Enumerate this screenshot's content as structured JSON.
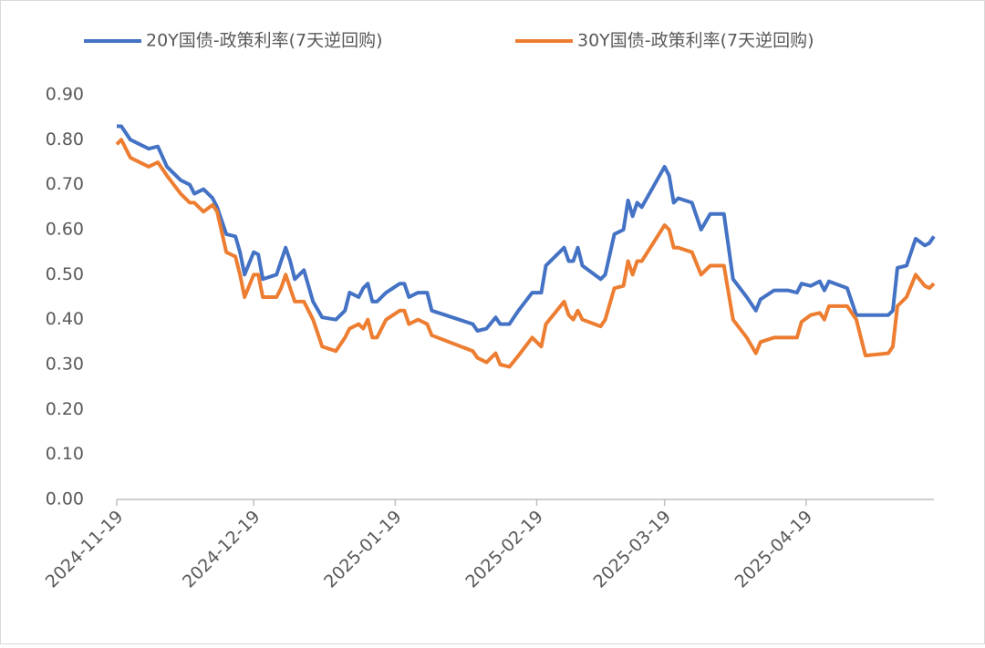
{
  "chart_data": {
    "type": "line",
    "x": [
      "2024-11-19",
      "2024-11-20",
      "2024-11-22",
      "2024-11-26",
      "2024-11-28",
      "2024-11-30",
      "2024-12-03",
      "2024-12-05",
      "2024-12-06",
      "2024-12-08",
      "2024-12-10",
      "2024-12-11",
      "2024-12-13",
      "2024-12-15",
      "2024-12-16",
      "2024-12-17",
      "2024-12-19",
      "2024-12-20",
      "2024-12-21",
      "2024-12-24",
      "2024-12-25",
      "2024-12-26",
      "2024-12-27",
      "2024-12-28",
      "2024-12-30",
      "2025-01-01",
      "2025-01-03",
      "2025-01-06",
      "2025-01-08",
      "2025-01-09",
      "2025-01-11",
      "2025-01-12",
      "2025-01-13",
      "2025-01-14",
      "2025-01-15",
      "2025-01-17",
      "2025-01-20",
      "2025-01-21",
      "2025-01-22",
      "2025-01-24",
      "2025-01-26",
      "2025-01-27",
      "2025-02-05",
      "2025-02-06",
      "2025-02-08",
      "2025-02-10",
      "2025-02-11",
      "2025-02-13",
      "2025-02-15",
      "2025-02-18",
      "2025-02-20",
      "2025-02-21",
      "2025-02-25",
      "2025-02-26",
      "2025-02-27",
      "2025-02-28",
      "2025-03-01",
      "2025-03-05",
      "2025-03-06",
      "2025-03-08",
      "2025-03-10",
      "2025-03-11",
      "2025-03-12",
      "2025-03-13",
      "2025-03-14",
      "2025-03-19",
      "2025-03-20",
      "2025-03-21",
      "2025-03-22",
      "2025-03-25",
      "2025-03-27",
      "2025-03-29",
      "2025-04-01",
      "2025-04-03",
      "2025-04-06",
      "2025-04-08",
      "2025-04-09",
      "2025-04-12",
      "2025-04-15",
      "2025-04-17",
      "2025-04-18",
      "2025-04-20",
      "2025-04-22",
      "2025-04-23",
      "2025-04-24",
      "2025-04-28",
      "2025-04-30",
      "2025-05-02",
      "2025-05-07",
      "2025-05-08",
      "2025-05-09",
      "2025-05-11",
      "2025-05-13",
      "2025-05-15",
      "2025-05-16",
      "2025-05-17"
    ],
    "series": [
      {
        "name": "20Y国债-政策利率(7天逆回购)",
        "color": "#4472c4",
        "values": [
          0.83,
          0.83,
          0.8,
          0.78,
          0.785,
          0.74,
          0.71,
          0.7,
          0.68,
          0.69,
          0.67,
          0.65,
          0.59,
          0.585,
          0.55,
          0.5,
          0.55,
          0.545,
          0.49,
          0.5,
          0.53,
          0.56,
          0.53,
          0.49,
          0.51,
          0.44,
          0.405,
          0.4,
          0.42,
          0.46,
          0.45,
          0.47,
          0.48,
          0.44,
          0.44,
          0.46,
          0.48,
          0.48,
          0.45,
          0.46,
          0.46,
          0.42,
          0.39,
          0.375,
          0.38,
          0.405,
          0.39,
          0.39,
          0.42,
          0.46,
          0.46,
          0.52,
          0.56,
          0.53,
          0.53,
          0.56,
          0.52,
          0.49,
          0.5,
          0.59,
          0.6,
          0.665,
          0.63,
          0.66,
          0.65,
          0.74,
          0.72,
          0.66,
          0.67,
          0.66,
          0.6,
          0.635,
          0.635,
          0.49,
          0.45,
          0.42,
          0.445,
          0.465,
          0.465,
          0.46,
          0.48,
          0.475,
          0.485,
          0.465,
          0.485,
          0.47,
          0.41,
          0.41,
          0.41,
          0.42,
          0.515,
          0.52,
          0.58,
          0.565,
          0.57,
          0.585
        ]
      },
      {
        "name": "30Y国债-政策利率(7天逆回购)",
        "color": "#ed7d31",
        "values": [
          0.79,
          0.8,
          0.76,
          0.74,
          0.75,
          0.72,
          0.68,
          0.66,
          0.66,
          0.64,
          0.655,
          0.64,
          0.55,
          0.54,
          0.5,
          0.45,
          0.5,
          0.5,
          0.45,
          0.45,
          0.47,
          0.5,
          0.47,
          0.44,
          0.44,
          0.4,
          0.34,
          0.33,
          0.36,
          0.38,
          0.39,
          0.38,
          0.4,
          0.36,
          0.36,
          0.4,
          0.42,
          0.42,
          0.39,
          0.4,
          0.39,
          0.365,
          0.33,
          0.315,
          0.305,
          0.325,
          0.3,
          0.295,
          0.32,
          0.36,
          0.34,
          0.39,
          0.44,
          0.41,
          0.4,
          0.42,
          0.4,
          0.385,
          0.4,
          0.47,
          0.475,
          0.53,
          0.5,
          0.53,
          0.53,
          0.61,
          0.6,
          0.56,
          0.56,
          0.55,
          0.5,
          0.52,
          0.52,
          0.4,
          0.36,
          0.325,
          0.35,
          0.36,
          0.36,
          0.36,
          0.395,
          0.41,
          0.415,
          0.4,
          0.43,
          0.43,
          0.4,
          0.32,
          0.325,
          0.34,
          0.43,
          0.45,
          0.5,
          0.475,
          0.47,
          0.48
        ]
      }
    ],
    "xlim": [
      "2024-11-19",
      "2025-05-17"
    ],
    "xticks": [
      "2024-11-19",
      "2024-12-19",
      "2025-01-19",
      "2025-02-19",
      "2025-03-19",
      "2025-04-19"
    ],
    "ylim": [
      0,
      0.9
    ],
    "yticks": [
      {
        "value": 0,
        "label": "0.00"
      },
      {
        "value": 0.1,
        "label": "0.10"
      },
      {
        "value": 0.2,
        "label": "0.20"
      },
      {
        "value": 0.3,
        "label": "0.30"
      },
      {
        "value": 0.4,
        "label": "0.40"
      },
      {
        "value": 0.5,
        "label": "0.50"
      },
      {
        "value": 0.6,
        "label": "0.60"
      },
      {
        "value": 0.7,
        "label": "0.70"
      },
      {
        "value": 0.8,
        "label": "0.80"
      },
      {
        "value": 0.9,
        "label": "0.90"
      }
    ],
    "grid": false,
    "legend": "top"
  }
}
